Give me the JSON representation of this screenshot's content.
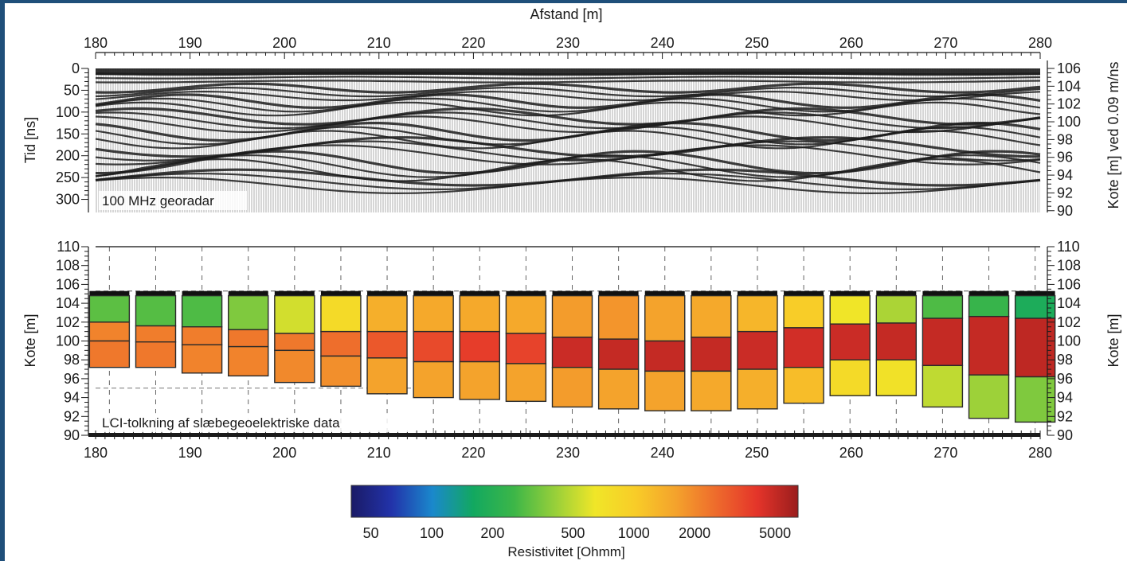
{
  "colors": {
    "frame": "#1f4f7a",
    "background": "#ffffff",
    "axis": "#1a1a1a",
    "gridline": "#555555",
    "colorbar_stops": [
      "#1a1a66",
      "#2233aa",
      "#1a88cc",
      "#12a860",
      "#3cb648",
      "#96cf3a",
      "#f0e628",
      "#f8cc28",
      "#f4a22c",
      "#ee6a2c",
      "#e4342a",
      "#9a1d1d"
    ]
  },
  "chart_data": [
    {
      "id": "georadar",
      "type": "heatmap",
      "title": "Afstand [m]",
      "xlabel": "Afstand [m]",
      "ylabel": "Tid [ns]",
      "y2label": "Kote [m] ved 0.09 m/ns",
      "annotation": "100 MHz georadar",
      "xlim": [
        180,
        280
      ],
      "ylim": [
        0,
        330
      ],
      "y2lim": [
        89.8,
        106
      ],
      "x_ticks": [
        180,
        190,
        200,
        210,
        220,
        230,
        240,
        250,
        260,
        270,
        280
      ],
      "y_ticks": [
        0,
        50,
        100,
        150,
        200,
        250,
        300
      ],
      "y2_ticks": [
        90,
        92,
        94,
        96,
        98,
        100,
        102,
        104,
        106
      ],
      "reflector_horizons": [
        {
          "base_ns": 12,
          "amplitude_ns": 2,
          "wavelength_m": 40
        },
        {
          "base_ns": 45,
          "amplitude_ns": 10,
          "wavelength_m": 30
        },
        {
          "base_ns": 75,
          "amplitude_ns": 15,
          "wavelength_m": 28
        },
        {
          "base_ns": 110,
          "amplitude_ns": 18,
          "wavelength_m": 35
        },
        {
          "base_ns": 145,
          "amplitude_ns": 20,
          "wavelength_m": 32
        },
        {
          "base_ns": 180,
          "amplitude_ns": 22,
          "wavelength_m": 45
        },
        {
          "base_ns": 215,
          "amplitude_ns": 25,
          "wavelength_m": 38
        },
        {
          "base_ns": 250,
          "amplitude_ns": 18,
          "wavelength_m": 50
        }
      ]
    },
    {
      "id": "lci",
      "type": "heatmap",
      "xlabel": "",
      "ylabel": "Kote [m]",
      "y2label": "Kote [m]",
      "annotation": "LCI-tolkning af slæbegeoelektriske data",
      "xlim": [
        180,
        280
      ],
      "ylim": [
        90,
        110
      ],
      "x_ticks": [
        180,
        190,
        200,
        210,
        220,
        230,
        240,
        250,
        260,
        270,
        280
      ],
      "y_ticks": [
        90,
        92,
        94,
        96,
        98,
        100,
        102,
        104,
        106,
        108,
        110
      ],
      "surface_elevation": 105.3,
      "dashed_reference_elevation": 95,
      "columns": [
        {
          "x": 180.2,
          "layers": [
            {
              "top": 104.8,
              "bottom": 102.0,
              "rho": 300
            },
            {
              "top": 102.0,
              "bottom": 100.0,
              "rho": 2100
            },
            {
              "top": 100.0,
              "bottom": 97.2,
              "rho": 2300
            }
          ]
        },
        {
          "x": 185.1,
          "layers": [
            {
              "top": 104.8,
              "bottom": 101.6,
              "rho": 290
            },
            {
              "top": 101.6,
              "bottom": 99.9,
              "rho": 2200
            },
            {
              "top": 99.9,
              "bottom": 97.2,
              "rho": 2300
            }
          ]
        },
        {
          "x": 190.0,
          "layers": [
            {
              "top": 104.8,
              "bottom": 101.5,
              "rho": 280
            },
            {
              "top": 101.5,
              "bottom": 99.6,
              "rho": 2200
            },
            {
              "top": 99.6,
              "bottom": 96.6,
              "rho": 2100
            }
          ]
        },
        {
          "x": 194.9,
          "layers": [
            {
              "top": 104.8,
              "bottom": 101.2,
              "rho": 360
            },
            {
              "top": 101.2,
              "bottom": 99.4,
              "rho": 2300
            },
            {
              "top": 99.4,
              "bottom": 96.3,
              "rho": 2100
            }
          ]
        },
        {
          "x": 199.8,
          "layers": [
            {
              "top": 104.8,
              "bottom": 100.8,
              "rho": 550
            },
            {
              "top": 100.8,
              "bottom": 99.0,
              "rho": 2300
            },
            {
              "top": 99.0,
              "bottom": 95.6,
              "rho": 2000
            }
          ]
        },
        {
          "x": 204.7,
          "layers": [
            {
              "top": 104.8,
              "bottom": 101.0,
              "rho": 800
            },
            {
              "top": 101.0,
              "bottom": 98.4,
              "rho": 2500
            },
            {
              "top": 98.4,
              "bottom": 95.2,
              "rho": 1900
            }
          ]
        },
        {
          "x": 209.6,
          "layers": [
            {
              "top": 104.8,
              "bottom": 101.0,
              "rho": 1400
            },
            {
              "top": 101.0,
              "bottom": 98.2,
              "rho": 3000
            },
            {
              "top": 98.2,
              "bottom": 94.4,
              "rho": 1600
            }
          ]
        },
        {
          "x": 214.5,
          "layers": [
            {
              "top": 104.8,
              "bottom": 101.0,
              "rho": 1500
            },
            {
              "top": 101.0,
              "bottom": 97.8,
              "rho": 3400
            },
            {
              "top": 97.8,
              "bottom": 94.0,
              "rho": 1600
            }
          ]
        },
        {
          "x": 219.4,
          "layers": [
            {
              "top": 104.8,
              "bottom": 101.0,
              "rho": 1500
            },
            {
              "top": 101.0,
              "bottom": 97.8,
              "rho": 3800
            },
            {
              "top": 97.8,
              "bottom": 93.8,
              "rho": 1600
            }
          ]
        },
        {
          "x": 224.3,
          "layers": [
            {
              "top": 104.8,
              "bottom": 100.8,
              "rho": 1500
            },
            {
              "top": 100.8,
              "bottom": 97.6,
              "rho": 3600
            },
            {
              "top": 97.6,
              "bottom": 93.6,
              "rho": 1600
            }
          ]
        },
        {
          "x": 229.2,
          "layers": [
            {
              "top": 104.8,
              "bottom": 100.4,
              "rho": 1700
            },
            {
              "top": 100.4,
              "bottom": 97.2,
              "rho": 4800
            },
            {
              "top": 97.2,
              "bottom": 93.0,
              "rho": 1700
            }
          ]
        },
        {
          "x": 234.1,
          "layers": [
            {
              "top": 104.8,
              "bottom": 100.2,
              "rho": 1800
            },
            {
              "top": 100.2,
              "bottom": 97.0,
              "rho": 5000
            },
            {
              "top": 97.0,
              "bottom": 92.8,
              "rho": 1600
            }
          ]
        },
        {
          "x": 239.0,
          "layers": [
            {
              "top": 104.8,
              "bottom": 100.0,
              "rho": 1600
            },
            {
              "top": 100.0,
              "bottom": 96.8,
              "rho": 5000
            },
            {
              "top": 96.8,
              "bottom": 92.6,
              "rho": 1600
            }
          ]
        },
        {
          "x": 243.9,
          "layers": [
            {
              "top": 104.8,
              "bottom": 100.4,
              "rho": 1500
            },
            {
              "top": 100.4,
              "bottom": 96.8,
              "rho": 5000
            },
            {
              "top": 96.8,
              "bottom": 92.6,
              "rho": 1500
            }
          ]
        },
        {
          "x": 248.8,
          "layers": [
            {
              "top": 104.8,
              "bottom": 101.0,
              "rho": 1300
            },
            {
              "top": 101.0,
              "bottom": 97.0,
              "rho": 4800
            },
            {
              "top": 97.0,
              "bottom": 92.8,
              "rho": 1400
            }
          ]
        },
        {
          "x": 253.7,
          "layers": [
            {
              "top": 104.8,
              "bottom": 101.4,
              "rho": 1000
            },
            {
              "top": 101.4,
              "bottom": 97.2,
              "rho": 4600
            },
            {
              "top": 97.2,
              "bottom": 93.4,
              "rho": 1200
            }
          ]
        },
        {
          "x": 258.6,
          "layers": [
            {
              "top": 104.8,
              "bottom": 101.8,
              "rho": 650
            },
            {
              "top": 101.8,
              "bottom": 98.0,
              "rho": 4800
            },
            {
              "top": 98.0,
              "bottom": 94.2,
              "rho": 800
            }
          ]
        },
        {
          "x": 263.5,
          "layers": [
            {
              "top": 104.8,
              "bottom": 101.9,
              "rho": 450
            },
            {
              "top": 101.9,
              "bottom": 98.0,
              "rho": 5000
            },
            {
              "top": 98.0,
              "bottom": 94.2,
              "rho": 700
            }
          ]
        },
        {
          "x": 268.4,
          "layers": [
            {
              "top": 104.8,
              "bottom": 102.4,
              "rho": 280
            },
            {
              "top": 102.4,
              "bottom": 97.4,
              "rho": 5000
            },
            {
              "top": 97.4,
              "bottom": 93.0,
              "rho": 500
            }
          ]
        },
        {
          "x": 273.3,
          "layers": [
            {
              "top": 104.8,
              "bottom": 102.6,
              "rho": 240
            },
            {
              "top": 102.6,
              "bottom": 96.4,
              "rho": 5000
            },
            {
              "top": 96.4,
              "bottom": 91.8,
              "rho": 420
            }
          ]
        },
        {
          "x": 278.2,
          "layers": [
            {
              "top": 104.8,
              "bottom": 102.4,
              "rho": 180
            },
            {
              "top": 102.4,
              "bottom": 96.2,
              "rho": 5200
            },
            {
              "top": 96.2,
              "bottom": 91.4,
              "rho": 360
            }
          ]
        }
      ]
    },
    {
      "id": "colorbar",
      "type": "heatmap",
      "xlabel": "Resistivitet [Ohmm]",
      "scale": "log",
      "xlim": [
        40,
        6500
      ],
      "x_ticks": [
        50,
        100,
        200,
        500,
        1000,
        2000,
        5000
      ],
      "x_tick_labels": [
        "50",
        "100",
        "200",
        "500",
        "1000",
        "2000",
        "5000"
      ]
    }
  ]
}
